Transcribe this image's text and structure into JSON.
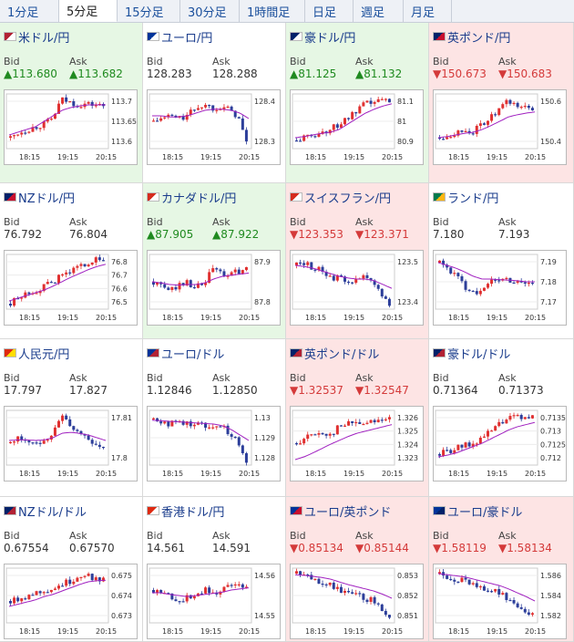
{
  "tabs": [
    {
      "label": "1分足",
      "active": false
    },
    {
      "label": "5分足",
      "active": true
    },
    {
      "label": "15分足",
      "active": false
    },
    {
      "label": "30分足",
      "active": false
    },
    {
      "label": "1時間足",
      "active": false
    },
    {
      "label": "日足",
      "active": false
    },
    {
      "label": "週足",
      "active": false
    },
    {
      "label": "月足",
      "active": false
    }
  ],
  "labels": {
    "bid": "Bid",
    "ask": "Ask"
  },
  "pairs": [
    {
      "name": "米ドル/円",
      "trend": "up",
      "bid": "▲113.680",
      "ask": "▲113.682",
      "flag": [
        "#b22234",
        "#ffffff"
      ],
      "y_ticks": [
        "113.7",
        "113.65",
        "113.6"
      ],
      "x_ticks": [
        "18:15",
        "19:15",
        "20:15"
      ],
      "shape": [
        0.2,
        0.3,
        0.35,
        0.4,
        0.45,
        0.55,
        0.9,
        0.85,
        0.8,
        0.82,
        0.8,
        0.78
      ],
      "ma": [
        0.25,
        0.3,
        0.35,
        0.4,
        0.5,
        0.6,
        0.7,
        0.75,
        0.78,
        0.8,
        0.8,
        0.8
      ]
    },
    {
      "name": "ユーロ/円",
      "trend": "neutral",
      "bid": "128.283",
      "ask": "128.288",
      "flag": [
        "#003399",
        "#ffffff"
      ],
      "y_ticks": [
        "128.4",
        "128.3"
      ],
      "x_ticks": [
        "18:15",
        "19:15",
        "20:15"
      ],
      "shape": [
        0.5,
        0.55,
        0.6,
        0.55,
        0.6,
        0.75,
        0.8,
        0.75,
        0.78,
        0.7,
        0.6,
        0.1
      ],
      "ma": [
        0.6,
        0.6,
        0.58,
        0.58,
        0.6,
        0.65,
        0.7,
        0.72,
        0.72,
        0.7,
        0.65,
        0.55
      ]
    },
    {
      "name": "豪ドル/円",
      "trend": "up",
      "bid": "▲81.125",
      "ask": "▲81.132",
      "flag": [
        "#012169",
        "#ffffff"
      ],
      "y_ticks": [
        "81.1",
        "81",
        "80.9"
      ],
      "x_ticks": [
        "18:15",
        "19:15",
        "20:15"
      ],
      "shape": [
        0.15,
        0.2,
        0.25,
        0.3,
        0.35,
        0.45,
        0.55,
        0.65,
        0.8,
        0.85,
        0.88,
        0.9
      ],
      "ma": [
        0.2,
        0.22,
        0.25,
        0.28,
        0.3,
        0.35,
        0.45,
        0.55,
        0.65,
        0.72,
        0.78,
        0.82
      ]
    },
    {
      "name": "英ポンド/円",
      "trend": "down",
      "bid": "▼150.673",
      "ask": "▼150.683",
      "flag": [
        "#012169",
        "#c8102e"
      ],
      "y_ticks": [
        "150.6",
        "150.4"
      ],
      "x_ticks": [
        "18:15",
        "19:15",
        "20:15"
      ],
      "shape": [
        0.2,
        0.25,
        0.3,
        0.35,
        0.3,
        0.45,
        0.55,
        0.7,
        0.85,
        0.8,
        0.75,
        0.72
      ],
      "ma": [
        0.2,
        0.22,
        0.25,
        0.28,
        0.3,
        0.35,
        0.42,
        0.5,
        0.58,
        0.62,
        0.65,
        0.67
      ]
    },
    {
      "name": "NZドル/円",
      "trend": "neutral",
      "bid": "76.792",
      "ask": "76.804",
      "flag": [
        "#012169",
        "#c8102e"
      ],
      "y_ticks": [
        "76.8",
        "76.7",
        "76.6",
        "76.5"
      ],
      "x_ticks": [
        "18:15",
        "19:15",
        "20:15"
      ],
      "shape": [
        0.1,
        0.2,
        0.3,
        0.35,
        0.4,
        0.5,
        0.6,
        0.7,
        0.75,
        0.85,
        0.9,
        0.88
      ],
      "ma": [
        0.15,
        0.2,
        0.25,
        0.3,
        0.35,
        0.42,
        0.5,
        0.58,
        0.65,
        0.72,
        0.78,
        0.82
      ]
    },
    {
      "name": "カナダドル/円",
      "trend": "up",
      "bid": "▲87.905",
      "ask": "▲87.922",
      "flag": [
        "#d52b1e",
        "#ffffff"
      ],
      "y_ticks": [
        "87.9",
        "87.8"
      ],
      "x_ticks": [
        "18:15",
        "19:15",
        "20:15"
      ],
      "shape": [
        0.5,
        0.4,
        0.35,
        0.45,
        0.5,
        0.4,
        0.45,
        0.75,
        0.65,
        0.6,
        0.7,
        0.72
      ],
      "ma": [
        0.5,
        0.48,
        0.45,
        0.44,
        0.45,
        0.45,
        0.48,
        0.55,
        0.6,
        0.62,
        0.64,
        0.66
      ]
    },
    {
      "name": "スイスフラン/円",
      "trend": "down",
      "bid": "▼123.353",
      "ask": "▼123.371",
      "flag": [
        "#d52b1e",
        "#ffffff"
      ],
      "y_ticks": [
        "123.5",
        "123.4"
      ],
      "x_ticks": [
        "18:15",
        "19:15",
        "20:15"
      ],
      "shape": [
        0.8,
        0.85,
        0.75,
        0.7,
        0.6,
        0.55,
        0.55,
        0.5,
        0.6,
        0.45,
        0.3,
        0.1
      ],
      "ma": [
        0.8,
        0.78,
        0.75,
        0.7,
        0.65,
        0.6,
        0.57,
        0.55,
        0.55,
        0.52,
        0.45,
        0.38
      ]
    },
    {
      "name": "ランド/円",
      "trend": "neutral",
      "bid": "7.180",
      "ask": "7.193",
      "flag": [
        "#007a4d",
        "#ffb612"
      ],
      "y_ticks": [
        "7.19",
        "7.18",
        "7.17"
      ],
      "x_ticks": [
        "18:15",
        "19:15",
        "20:15"
      ],
      "shape": [
        0.85,
        0.75,
        0.6,
        0.4,
        0.35,
        0.3,
        0.5,
        0.55,
        0.55,
        0.5,
        0.5,
        0.48
      ],
      "ma": [
        0.85,
        0.8,
        0.75,
        0.68,
        0.6,
        0.55,
        0.55,
        0.54,
        0.53,
        0.52,
        0.5,
        0.5
      ]
    },
    {
      "name": "人民元/円",
      "trend": "neutral",
      "bid": "17.797",
      "ask": "17.827",
      "flag": [
        "#de2910",
        "#ffde00"
      ],
      "y_ticks": [
        "17.81",
        "17.8"
      ],
      "x_ticks": [
        "18:15",
        "19:15",
        "20:15"
      ],
      "shape": [
        0.4,
        0.5,
        0.45,
        0.35,
        0.5,
        0.55,
        0.95,
        0.7,
        0.6,
        0.5,
        0.4,
        0.3
      ],
      "ma": [
        0.45,
        0.46,
        0.46,
        0.45,
        0.46,
        0.5,
        0.58,
        0.6,
        0.58,
        0.55,
        0.5,
        0.45
      ]
    },
    {
      "name": "ユーロ/ドル",
      "trend": "neutral",
      "bid": "1.12846",
      "ask": "1.12850",
      "flag": [
        "#003399",
        "#b22234"
      ],
      "y_ticks": [
        "1.13",
        "1.129",
        "1.128"
      ],
      "x_ticks": [
        "18:15",
        "19:15",
        "20:15"
      ],
      "shape": [
        0.85,
        0.8,
        0.75,
        0.8,
        0.75,
        0.78,
        0.72,
        0.75,
        0.7,
        0.6,
        0.4,
        0.1
      ],
      "ma": [
        0.82,
        0.81,
        0.8,
        0.79,
        0.78,
        0.77,
        0.76,
        0.75,
        0.72,
        0.65,
        0.55,
        0.45
      ]
    },
    {
      "name": "英ポンド/ドル",
      "trend": "down",
      "bid": "▼1.32537",
      "ask": "▼1.32547",
      "flag": [
        "#012169",
        "#b22234"
      ],
      "y_ticks": [
        "1.326",
        "1.325",
        "1.324",
        "1.323"
      ],
      "x_ticks": [
        "18:15",
        "19:15",
        "20:15"
      ],
      "shape": [
        0.4,
        0.5,
        0.55,
        0.6,
        0.55,
        0.7,
        0.75,
        0.8,
        0.75,
        0.85,
        0.8,
        0.9
      ],
      "ma": [
        0.1,
        0.15,
        0.22,
        0.3,
        0.38,
        0.45,
        0.52,
        0.58,
        0.62,
        0.66,
        0.7,
        0.74
      ]
    },
    {
      "name": "豪ドル/ドル",
      "trend": "neutral",
      "bid": "0.71364",
      "ask": "0.71373",
      "flag": [
        "#012169",
        "#b22234"
      ],
      "y_ticks": [
        "0.7135",
        "0.713",
        "0.7125",
        "0.712"
      ],
      "x_ticks": [
        "18:15",
        "19:15",
        "20:15"
      ],
      "shape": [
        0.2,
        0.25,
        0.3,
        0.35,
        0.4,
        0.5,
        0.6,
        0.75,
        0.85,
        0.88,
        0.85,
        0.9
      ],
      "ma": [
        0.15,
        0.18,
        0.22,
        0.28,
        0.34,
        0.4,
        0.48,
        0.56,
        0.64,
        0.7,
        0.74,
        0.78
      ]
    },
    {
      "name": "NZドル/ドル",
      "trend": "neutral",
      "bid": "0.67554",
      "ask": "0.67570",
      "flag": [
        "#012169",
        "#b22234"
      ],
      "y_ticks": [
        "0.675",
        "0.674",
        "0.673"
      ],
      "x_ticks": [
        "18:15",
        "19:15",
        "20:15"
      ],
      "shape": [
        0.4,
        0.45,
        0.5,
        0.55,
        0.6,
        0.62,
        0.7,
        0.75,
        0.85,
        0.9,
        0.8,
        0.78
      ],
      "ma": [
        0.3,
        0.34,
        0.38,
        0.42,
        0.48,
        0.52,
        0.58,
        0.64,
        0.7,
        0.75,
        0.77,
        0.78
      ]
    },
    {
      "name": "香港ドル/円",
      "trend": "neutral",
      "bid": "14.561",
      "ask": "14.591",
      "flag": [
        "#de2910",
        "#ffffff"
      ],
      "y_ticks": [
        "14.56",
        "14.55"
      ],
      "x_ticks": [
        "18:15",
        "19:15",
        "20:15"
      ],
      "shape": [
        0.6,
        0.55,
        0.5,
        0.4,
        0.45,
        0.55,
        0.6,
        0.55,
        0.6,
        0.7,
        0.65,
        0.7
      ],
      "ma": [
        0.55,
        0.55,
        0.52,
        0.5,
        0.48,
        0.5,
        0.52,
        0.54,
        0.56,
        0.6,
        0.62,
        0.64
      ]
    },
    {
      "name": "ユーロ/英ポンド",
      "trend": "down",
      "bid": "▼0.85134",
      "ask": "▼0.85144",
      "flag": [
        "#003399",
        "#c8102e"
      ],
      "y_ticks": [
        "0.853",
        "0.852",
        "0.851"
      ],
      "x_ticks": [
        "18:15",
        "19:15",
        "20:15"
      ],
      "shape": [
        0.9,
        0.85,
        0.8,
        0.75,
        0.7,
        0.6,
        0.55,
        0.5,
        0.45,
        0.4,
        0.3,
        0.1
      ],
      "ma": [
        0.88,
        0.87,
        0.85,
        0.83,
        0.8,
        0.75,
        0.7,
        0.66,
        0.62,
        0.58,
        0.52,
        0.45
      ]
    },
    {
      "name": "ユーロ/豪ドル",
      "trend": "down",
      "bid": "▼1.58119",
      "ask": "▼1.58134",
      "flag": [
        "#003399",
        "#012169"
      ],
      "y_ticks": [
        "1.586",
        "1.584",
        "1.582"
      ],
      "x_ticks": [
        "18:15",
        "19:15",
        "20:15"
      ],
      "shape": [
        0.9,
        0.85,
        0.8,
        0.75,
        0.72,
        0.65,
        0.6,
        0.55,
        0.45,
        0.35,
        0.25,
        0.15
      ],
      "ma": [
        0.9,
        0.88,
        0.86,
        0.84,
        0.8,
        0.76,
        0.72,
        0.68,
        0.62,
        0.55,
        0.48,
        0.4
      ]
    }
  ]
}
